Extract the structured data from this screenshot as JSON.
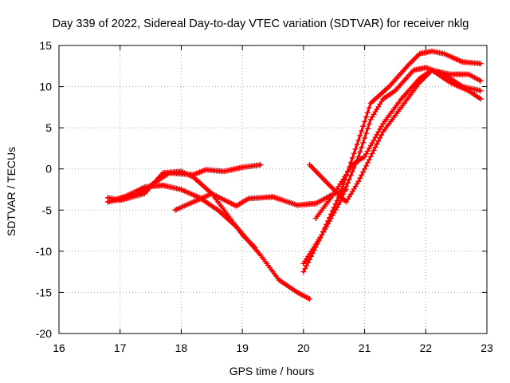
{
  "chart_data": {
    "type": "scatter",
    "title": "Day 339 of 2022, Sidereal Day-to-day VTEC variation (SDTVAR) for receiver nklg",
    "xlabel": "GPS time / hours",
    "ylabel": "SDTVAR / TECUs",
    "xlim": [
      16,
      23
    ],
    "ylim": [
      -20,
      15
    ],
    "xticks": [
      16,
      17,
      18,
      19,
      20,
      21,
      22,
      23
    ],
    "yticks": [
      -20,
      -15,
      -10,
      -5,
      0,
      5,
      10,
      15
    ],
    "xtick_labels": [
      "16",
      "17",
      "18",
      "19",
      "20",
      "21",
      "22",
      "23"
    ],
    "ytick_labels": [
      "-20",
      "-15",
      "-10",
      "-5",
      "0",
      "5",
      "10",
      "15"
    ],
    "grid": true,
    "marker": "+",
    "color": "#ff0000",
    "series": [
      {
        "name": "track-1",
        "x": [
          16.8,
          17.0,
          17.3,
          17.6,
          17.8,
          18.0,
          18.2,
          18.4,
          18.7,
          19.0,
          19.3
        ],
        "y": [
          -4.0,
          -3.7,
          -3.0,
          -1.5,
          -0.5,
          -0.6,
          -0.7,
          -0.1,
          -0.3,
          0.2,
          0.5
        ]
      },
      {
        "name": "track-2",
        "x": [
          16.8,
          17.0,
          17.4,
          17.7,
          18.0,
          18.2,
          18.5,
          18.8,
          19.0,
          19.2
        ],
        "y": [
          -3.5,
          -3.8,
          -3.0,
          -0.5,
          -0.3,
          -1.0,
          -3.0,
          -6.0,
          -8.0,
          -9.5
        ]
      },
      {
        "name": "track-3",
        "x": [
          16.8,
          17.1,
          17.4,
          17.7,
          18.0,
          18.3,
          18.6,
          18.9,
          19.3,
          19.6,
          19.9,
          20.1
        ],
        "y": [
          -4.0,
          -3.3,
          -2.2,
          -2.0,
          -2.5,
          -3.5,
          -5.0,
          -7.0,
          -10.5,
          -13.5,
          -15.0,
          -15.8
        ]
      },
      {
        "name": "track-4",
        "x": [
          17.9,
          18.2,
          18.5,
          18.9,
          19.1,
          19.5,
          19.9,
          20.2,
          20.5,
          20.7
        ],
        "y": [
          -5.0,
          -4.0,
          -3.0,
          -4.5,
          -3.6,
          -3.4,
          -4.4,
          -4.2,
          -3.0,
          -2.5
        ]
      },
      {
        "name": "track-5",
        "x": [
          20.1,
          20.4,
          20.7,
          20.9,
          21.1,
          21.3,
          21.6,
          21.9,
          22.1,
          22.4,
          22.7,
          22.9
        ],
        "y": [
          0.5,
          -1.8,
          -4.0,
          -1.5,
          1.5,
          4.5,
          7.5,
          10.5,
          12.0,
          11.5,
          11.5,
          10.7
        ]
      },
      {
        "name": "track-6",
        "x": [
          20.0,
          20.3,
          20.6,
          20.9,
          21.1,
          21.3,
          21.5,
          21.8,
          22.0,
          22.3,
          22.6,
          22.9
        ],
        "y": [
          -11.5,
          -8.0,
          -4.0,
          1.5,
          6.0,
          8.5,
          9.5,
          12.0,
          12.3,
          11.5,
          10.0,
          9.5
        ]
      },
      {
        "name": "track-7",
        "x": [
          20.0,
          20.3,
          20.6,
          20.9,
          21.1,
          21.4,
          21.7,
          21.9,
          22.1,
          22.3,
          22.6,
          22.9
        ],
        "y": [
          -12.5,
          -8.0,
          -3.0,
          3.5,
          8.0,
          10.0,
          12.5,
          14.0,
          14.3,
          14.0,
          13.0,
          12.8
        ]
      },
      {
        "name": "track-8",
        "x": [
          20.2,
          20.5,
          20.8,
          21.0,
          21.3,
          21.6,
          21.9,
          22.1,
          22.4,
          22.7,
          22.9
        ],
        "y": [
          -6.0,
          -3.0,
          0.5,
          1.5,
          5.5,
          8.5,
          11.0,
          12.0,
          10.5,
          9.5,
          8.5
        ]
      }
    ]
  }
}
